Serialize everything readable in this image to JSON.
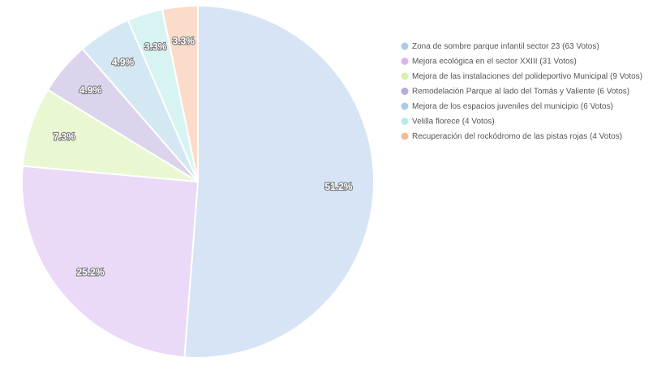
{
  "chart_data": {
    "type": "pie",
    "title": "",
    "legend_position": "right",
    "slices": [
      {
        "label": "Zona de sombre parque infantil sector 23 (63 Votos)",
        "votes": 63,
        "percent_label": "51.2%",
        "color": "#d6e4f5"
      },
      {
        "label": "Mejora ecológica  en el sector XXIII (31 Votos)",
        "votes": 31,
        "percent_label": "25.2%",
        "color": "#ead9f7"
      },
      {
        "label": "Mejora de las instalaciones del polideportivo Municipal (9 Votos)",
        "votes": 9,
        "percent_label": "7.3%",
        "color": "#e9f8d3"
      },
      {
        "label": "Remodelación Parque al lado del Tomás y Valiente (6 Votos)",
        "votes": 6,
        "percent_label": "4.9%",
        "color": "#dcd3ec"
      },
      {
        "label": "Mejora de los espacios juveniles del municipio (6 Votos)",
        "votes": 6,
        "percent_label": "4.9%",
        "color": "#d4e8f4"
      },
      {
        "label": "Velilla florece (4 Votos)",
        "votes": 4,
        "percent_label": "3.3%",
        "color": "#d8f4f2"
      },
      {
        "label": "Recuperación del rockódromo de las pistas rojas (4 Votos)",
        "votes": 4,
        "percent_label": "3.3%",
        "color": "#fbdcca"
      }
    ],
    "legend_marker_colors": [
      "#aec9ec",
      "#d9b6f0",
      "#d6f1a8",
      "#bda9db",
      "#a9cde6",
      "#b7ebe7",
      "#f6b99a"
    ]
  }
}
